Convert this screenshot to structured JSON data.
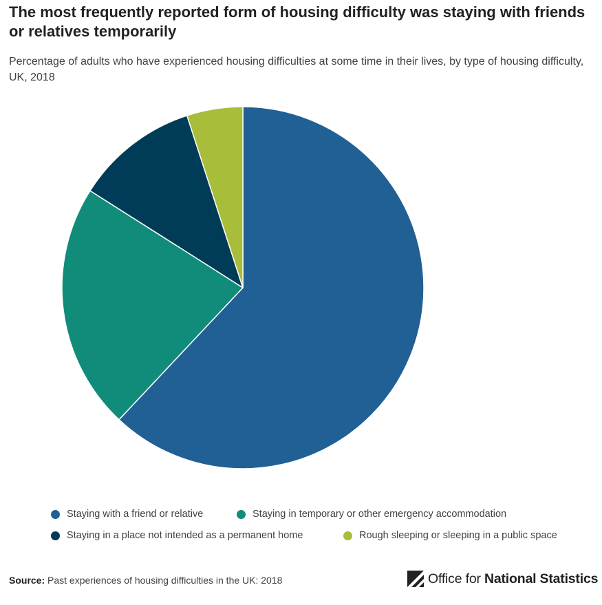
{
  "title": "The most frequently reported form of housing difficulty was staying with friends or relatives temporarily",
  "subtitle": "Percentage of adults who have experienced housing difficulties at some time in their lives, by type of housing difficulty, UK, 2018",
  "chart_data": {
    "type": "pie",
    "categories": [
      "Staying with a friend or relative",
      "Staying in temporary or other emergency accommodation",
      "Staying in a place not intended as a permanent home",
      "Rough sleeping or sleeping in a public space"
    ],
    "values": [
      62,
      22,
      11,
      5
    ],
    "colors": [
      "#206095",
      "#118c7b",
      "#003c57",
      "#a8bd3a"
    ],
    "legend_position": "bottom"
  },
  "source": {
    "label": "Source:",
    "text": "Past experiences of housing difficulties in the UK: 2018"
  },
  "logo": {
    "text_light": "Office for ",
    "text_bold": "National Statistics",
    "icon": "ons-logo-icon"
  }
}
